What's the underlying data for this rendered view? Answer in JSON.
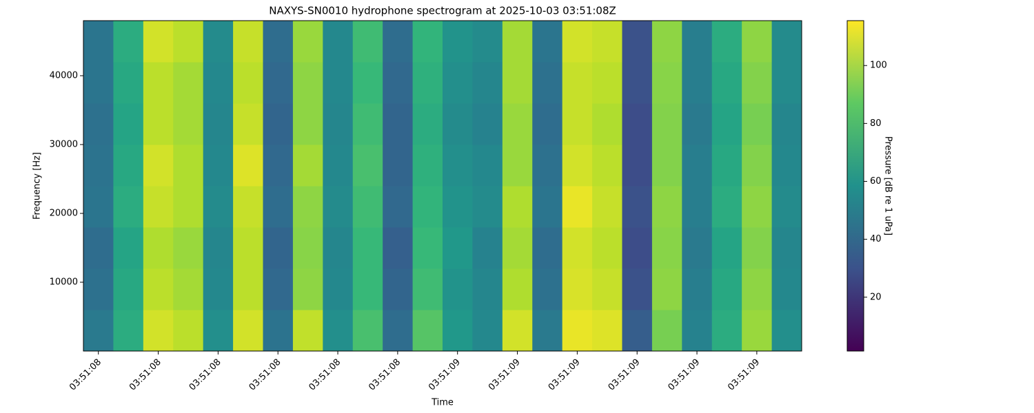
{
  "chart_data": {
    "type": "heatmap",
    "title": "NAXYS-SN0010 hydrophone spectrogram at 2025-10-03 03:51:08Z",
    "x_label": "Time",
    "y_label": "Frequency [Hz]",
    "colorbar_label": "Pressure [dB re 1 uPa]",
    "colormap": "viridis",
    "xlim": [
      8.375,
      9.575
    ],
    "xticks": [
      {
        "value": 8.4,
        "label": "03:51:08"
      },
      {
        "value": 8.5,
        "label": "03:51:08"
      },
      {
        "value": 8.6,
        "label": "03:51:08"
      },
      {
        "value": 8.7,
        "label": "03:51:08"
      },
      {
        "value": 8.8,
        "label": "03:51:08"
      },
      {
        "value": 8.9,
        "label": "03:51:08"
      },
      {
        "value": 9.0,
        "label": "03:51:09"
      },
      {
        "value": 9.1,
        "label": "03:51:09"
      },
      {
        "value": 9.2,
        "label": "03:51:09"
      },
      {
        "value": 9.3,
        "label": "03:51:09"
      },
      {
        "value": 9.4,
        "label": "03:51:09"
      },
      {
        "value": 9.5,
        "label": "03:51:09"
      }
    ],
    "ylim": [
      0,
      48000
    ],
    "yticks": [
      10000,
      20000,
      30000,
      40000
    ],
    "clim": [
      1.4,
      115.5
    ],
    "cticks": [
      20,
      40,
      60,
      80,
      100
    ],
    "z": [
      [
        48,
        72,
        108,
        104,
        58,
        108,
        45,
        105,
        58,
        82,
        42,
        85,
        62,
        55,
        108,
        48,
        112,
        110,
        35,
        92,
        52,
        72,
        98,
        58
      ],
      [
        44,
        70,
        104,
        100,
        55,
        104,
        40,
        96,
        55,
        78,
        38,
        80,
        60,
        54,
        102,
        44,
        109,
        106,
        30,
        96,
        50,
        70,
        96,
        55
      ],
      [
        42,
        68,
        102,
        98,
        54,
        104,
        38,
        95,
        54,
        78,
        36,
        78,
        62,
        52,
        100,
        42,
        108,
        104,
        28,
        95,
        48,
        68,
        94,
        54
      ],
      [
        46,
        72,
        106,
        102,
        56,
        106,
        42,
        96,
        56,
        80,
        40,
        76,
        60,
        56,
        102,
        46,
        112,
        106,
        30,
        96,
        50,
        72,
        96,
        56
      ],
      [
        45,
        70,
        108,
        102,
        55,
        110,
        40,
        100,
        55,
        82,
        38,
        74,
        58,
        55,
        98,
        44,
        108,
        104,
        28,
        94,
        50,
        70,
        94,
        55
      ],
      [
        44,
        68,
        104,
        100,
        54,
        106,
        38,
        96,
        54,
        80,
        38,
        72,
        56,
        52,
        98,
        42,
        106,
        102,
        28,
        94,
        48,
        68,
        92,
        54
      ],
      [
        46,
        70,
        104,
        100,
        55,
        104,
        40,
        96,
        55,
        78,
        40,
        74,
        58,
        54,
        100,
        44,
        106,
        104,
        30,
        95,
        50,
        70,
        94,
        56
      ],
      [
        46,
        72,
        108,
        104,
        56,
        106,
        42,
        98,
        55,
        80,
        42,
        76,
        60,
        56,
        100,
        46,
        108,
        106,
        30,
        96,
        50,
        72,
        96,
        56
      ]
    ]
  }
}
